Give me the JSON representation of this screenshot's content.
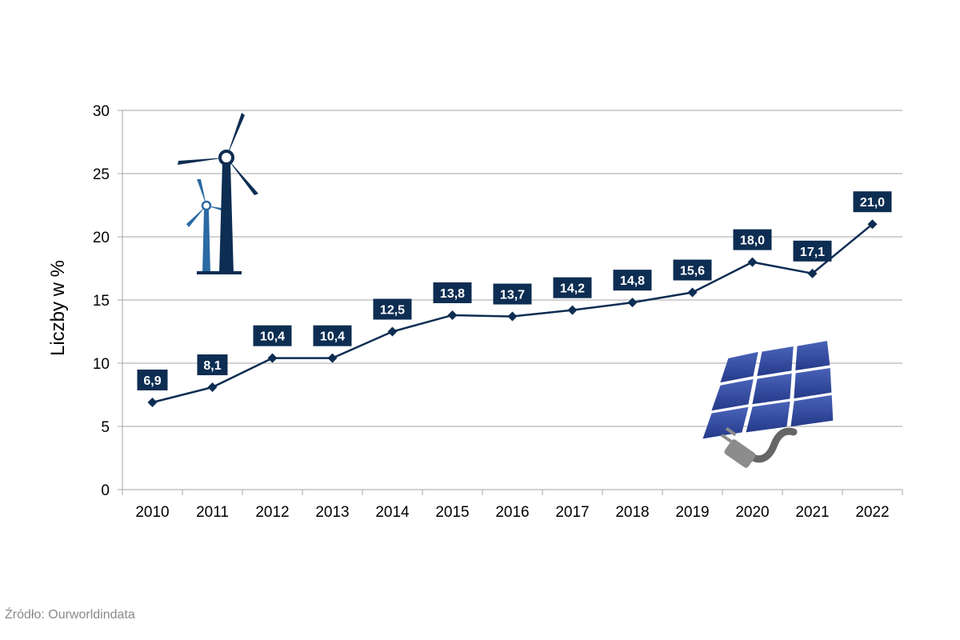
{
  "chart_data": {
    "type": "line",
    "categories": [
      "2010",
      "2011",
      "2012",
      "2013",
      "2014",
      "2015",
      "2016",
      "2017",
      "2018",
      "2019",
      "2020",
      "2021",
      "2022"
    ],
    "series": [
      {
        "values": [
          6.9,
          8.1,
          10.4,
          10.4,
          12.5,
          13.8,
          13.7,
          14.2,
          14.8,
          15.6,
          18.0,
          17.1,
          21.0
        ]
      }
    ],
    "data_labels": [
      "6,9",
      "8,1",
      "10,4",
      "10,4",
      "12,5",
      "13,8",
      "13,7",
      "14,2",
      "14,8",
      "15,6",
      "18,0",
      "17,1",
      "21,0"
    ],
    "ylabel": "Liczby w %",
    "ylim": [
      0,
      30
    ],
    "yticks": [
      "0",
      "5",
      "10",
      "15",
      "20",
      "25",
      "30"
    ],
    "grid": true,
    "line_color": "#0d2d52",
    "label_bg_color": "#0d2d52"
  },
  "decorations": {
    "wind_turbines": "wind-turbine-icon",
    "solar_panel": "solar-panel-icon"
  },
  "source": "Źródło: Ourworldindata"
}
